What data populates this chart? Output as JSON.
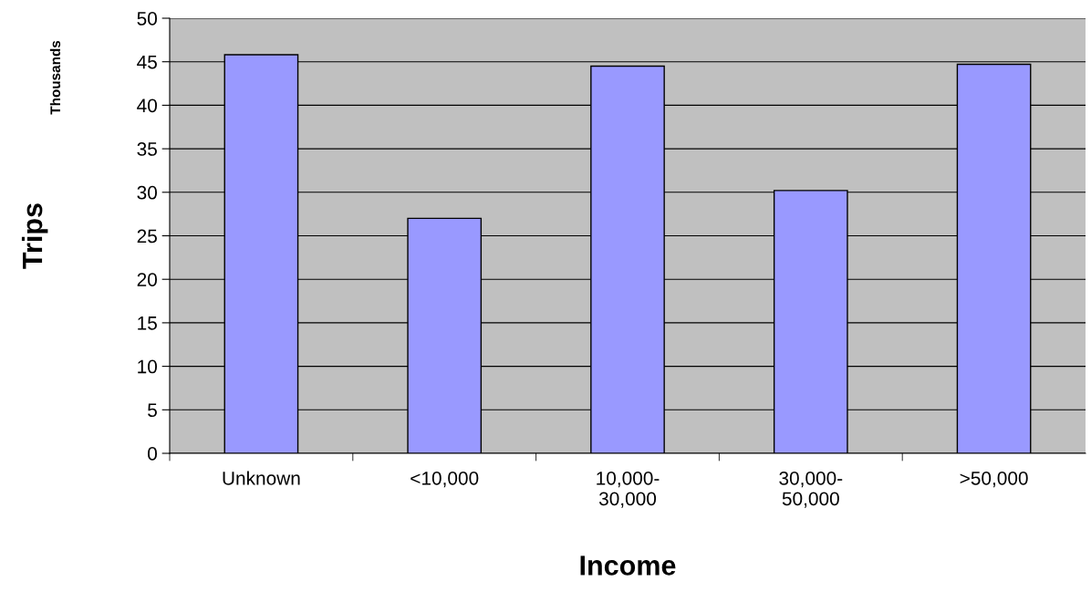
{
  "chart_data": {
    "type": "bar",
    "categories": [
      "Unknown",
      "<10,000",
      "10,000-\n30,000",
      "30,000-\n50,000",
      ">50,000"
    ],
    "values": [
      45.8,
      27.0,
      44.5,
      30.2,
      44.7
    ],
    "color": "#9999ff",
    "xlabel": "Income",
    "ylabel": "Trips",
    "annotations": [
      "Thousands"
    ],
    "ylim": [
      0,
      50
    ],
    "yticks": [
      0,
      5,
      10,
      15,
      20,
      25,
      30,
      35,
      40,
      45,
      50
    ],
    "grid": "y",
    "legend": false
  }
}
